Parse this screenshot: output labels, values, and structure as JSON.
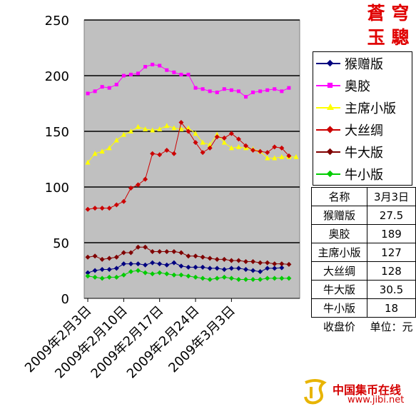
{
  "brand_corner": [
    "蒼 穹",
    "玉 驄"
  ],
  "chart_data": {
    "type": "line",
    "title": "",
    "xlabel": "",
    "ylabel": "",
    "ylim": [
      0,
      250
    ],
    "yticks": [
      0,
      50,
      100,
      150,
      200,
      250
    ],
    "grid": true,
    "legend_position": "right",
    "x_tick_labels": [
      "2009年2月3日",
      "2009年2月10日",
      "2009年2月17日",
      "2009年2月24日",
      "2009年3月3日"
    ],
    "x_tick_index": [
      0,
      5,
      10,
      15,
      20
    ],
    "series": [
      {
        "name": "猴赠版",
        "color": "#000080",
        "marker": "diamond",
        "values": [
          23,
          25,
          26,
          26,
          27,
          31,
          31,
          31,
          30,
          32,
          31,
          30,
          32,
          29,
          28,
          28,
          28,
          27,
          27,
          26,
          27,
          27,
          26,
          25,
          24,
          27,
          27,
          27.5
        ]
      },
      {
        "name": "奥胶",
        "color": "#ff00ff",
        "marker": "square",
        "values": [
          184,
          186,
          190,
          189,
          192,
          200,
          201,
          202,
          208,
          210,
          209,
          205,
          203,
          201,
          201,
          189,
          188,
          186,
          185,
          188,
          187,
          186,
          181,
          185,
          186,
          187,
          188,
          186,
          189
        ]
      },
      {
        "name": "主席小版",
        "color": "#ffff00",
        "marker": "triangle",
        "values": [
          122,
          130,
          132,
          135,
          142,
          147,
          150,
          154,
          152,
          151,
          152,
          155,
          153,
          152,
          153,
          148,
          140,
          138,
          147,
          140,
          135,
          136,
          135,
          134,
          132,
          126,
          126,
          127,
          127,
          127
        ]
      },
      {
        "name": "大丝绸",
        "color": "#cc0000",
        "marker": "diamond",
        "values": [
          80,
          81,
          81,
          81,
          84,
          87,
          99,
          102,
          107,
          130,
          129,
          133,
          130,
          158,
          150,
          140,
          131,
          135,
          145,
          144,
          148,
          143,
          137,
          133,
          132,
          131,
          136,
          135,
          128
        ]
      },
      {
        "name": "牛大版",
        "color": "#800000",
        "marker": "diamond",
        "values": [
          37,
          38,
          35,
          36,
          37,
          41,
          41,
          46,
          46,
          42,
          42,
          42,
          42,
          41,
          38,
          38,
          37,
          36,
          35,
          35,
          34,
          34,
          33,
          33,
          32,
          32,
          31,
          31,
          30.5
        ]
      },
      {
        "name": "牛小版",
        "color": "#00cc00",
        "marker": "diamond",
        "values": [
          20,
          19,
          18,
          19,
          19,
          21,
          24,
          25,
          23,
          22,
          23,
          22,
          21,
          21,
          20,
          19,
          18,
          17,
          18,
          19,
          18,
          17,
          17,
          17,
          17,
          18,
          18,
          18,
          18
        ]
      }
    ]
  },
  "table": {
    "headers": [
      "名称",
      "3月3日"
    ],
    "rows": [
      [
        "猴赠版",
        "27.5"
      ],
      [
        "奥胶",
        "189"
      ],
      [
        "主席小版",
        "127"
      ],
      [
        "大丝绸",
        "128"
      ],
      [
        "牛大版",
        "30.5"
      ],
      [
        "牛小版",
        "18"
      ]
    ],
    "footer": [
      "收盘价",
      "单位：元"
    ]
  },
  "footer": {
    "site_name": "中国集币在线",
    "url": "www.jibi.net"
  }
}
